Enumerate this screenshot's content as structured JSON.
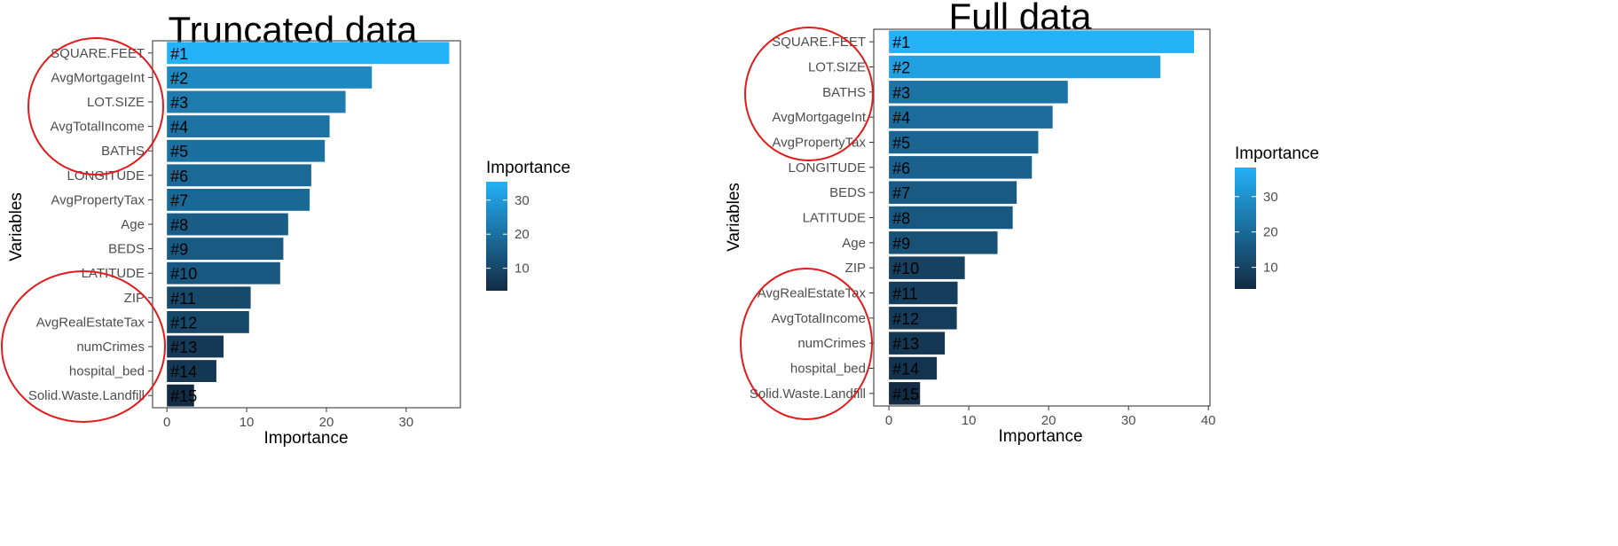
{
  "colors": {
    "low": "#132b43",
    "high": "#23b1f8",
    "circle": "#e31a1c"
  },
  "chart_data": [
    {
      "type": "bar",
      "orientation": "horizontal",
      "title": "Truncated data",
      "xlabel": "Importance",
      "ylabel": "Variables",
      "xlim": [
        -1.8,
        36.8
      ],
      "xticks": [
        0,
        10,
        20,
        30
      ],
      "grid": false,
      "legend": {
        "title": "Importance",
        "ticks": [
          10,
          20,
          30
        ],
        "range": [
          3.4,
          35.4
        ],
        "placement": "right"
      },
      "bars": [
        {
          "label": "SQUARE.FEET",
          "rank": "#1",
          "value": 35.4
        },
        {
          "label": "AvgMortgageInt",
          "rank": "#2",
          "value": 25.7
        },
        {
          "label": "LOT.SIZE",
          "rank": "#3",
          "value": 22.4
        },
        {
          "label": "AvgTotalIncome",
          "rank": "#4",
          "value": 20.4
        },
        {
          "label": "BATHS",
          "rank": "#5",
          "value": 19.8
        },
        {
          "label": "LONGITUDE",
          "rank": "#6",
          "value": 18.1
        },
        {
          "label": "AvgPropertyTax",
          "rank": "#7",
          "value": 17.9
        },
        {
          "label": "Age",
          "rank": "#8",
          "value": 15.2
        },
        {
          "label": "BEDS",
          "rank": "#9",
          "value": 14.6
        },
        {
          "label": "LATITUDE",
          "rank": "#10",
          "value": 14.2
        },
        {
          "label": "ZIP",
          "rank": "#11",
          "value": 10.5
        },
        {
          "label": "AvgRealEstateTax",
          "rank": "#12",
          "value": 10.3
        },
        {
          "label": "numCrimes",
          "rank": "#13",
          "value": 7.1
        },
        {
          "label": "hospital_bed",
          "rank": "#14",
          "value": 6.2
        },
        {
          "label": "Solid.Waste.Landfill",
          "rank": "#15",
          "value": 3.4
        }
      ]
    },
    {
      "type": "bar",
      "orientation": "horizontal",
      "title": "Full data",
      "xlabel": "Importance",
      "ylabel": "Variables",
      "xlim": [
        -1.9,
        40.2
      ],
      "xticks": [
        0,
        10,
        20,
        30,
        40
      ],
      "grid": false,
      "legend": {
        "title": "Importance",
        "ticks": [
          10,
          20,
          30
        ],
        "range": [
          3.9,
          38.2
        ],
        "placement": "right"
      },
      "bars": [
        {
          "label": "SQUARE.FEET",
          "rank": "#1",
          "value": 38.2
        },
        {
          "label": "LOT.SIZE",
          "rank": "#2",
          "value": 34.0
        },
        {
          "label": "BATHS",
          "rank": "#3",
          "value": 22.4
        },
        {
          "label": "AvgMortgageInt",
          "rank": "#4",
          "value": 20.5
        },
        {
          "label": "AvgPropertyTax",
          "rank": "#5",
          "value": 18.7
        },
        {
          "label": "LONGITUDE",
          "rank": "#6",
          "value": 17.9
        },
        {
          "label": "BEDS",
          "rank": "#7",
          "value": 16.0
        },
        {
          "label": "LATITUDE",
          "rank": "#8",
          "value": 15.5
        },
        {
          "label": "Age",
          "rank": "#9",
          "value": 13.6
        },
        {
          "label": "ZIP",
          "rank": "#10",
          "value": 9.5
        },
        {
          "label": "AvgRealEstateTax",
          "rank": "#11",
          "value": 8.6
        },
        {
          "label": "AvgTotalIncome",
          "rank": "#12",
          "value": 8.5
        },
        {
          "label": "numCrimes",
          "rank": "#13",
          "value": 7.0
        },
        {
          "label": "hospital_bed",
          "rank": "#14",
          "value": 6.0
        },
        {
          "label": "Solid.Waste.Landfill",
          "rank": "#15",
          "value": 3.9
        }
      ]
    }
  ]
}
